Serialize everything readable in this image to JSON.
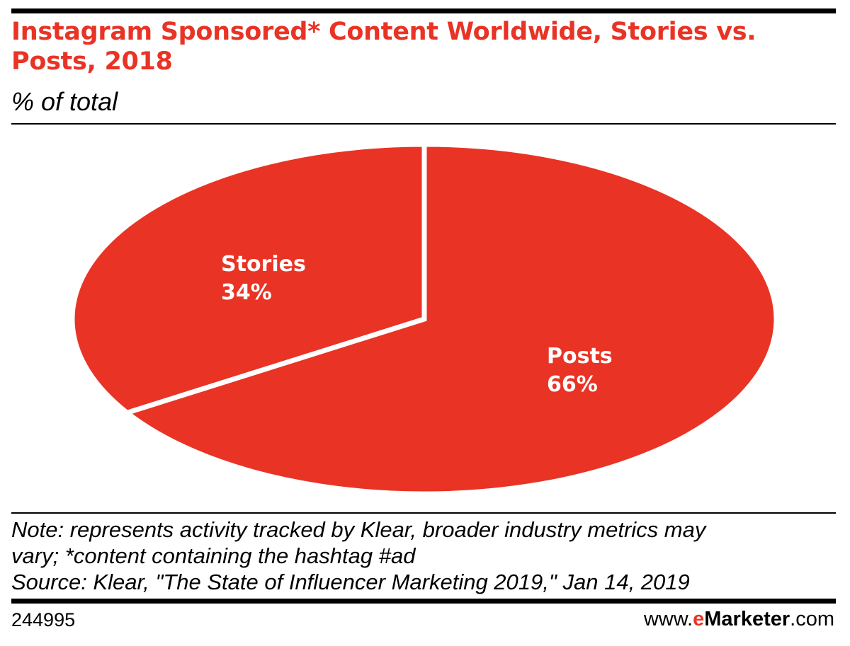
{
  "header": {
    "title": "Instagram Sponsored* Content Worldwide, Stories vs. Posts, 2018",
    "subtitle": "% of total"
  },
  "chart_data": {
    "type": "pie",
    "title": "Instagram Sponsored* Content Worldwide, Stories vs. Posts, 2018",
    "subtitle": "% of total",
    "categories": [
      "Stories",
      "Posts"
    ],
    "values": [
      34,
      66
    ],
    "value_labels": [
      "34%",
      "66%"
    ],
    "slice_color": "#e93325",
    "separator_color": "#ffffff"
  },
  "footer": {
    "note_line1": "Note: represents activity tracked by Klear, broader industry metrics may",
    "note_line2": "vary; *content containing the hashtag #ad",
    "source": "Source: Klear, \"The State of Influencer Marketing 2019,\" Jan 14, 2019",
    "chart_id": "244995",
    "brand_prefix": "www.",
    "brand_e": "e",
    "brand_name": "Marketer",
    "brand_suffix": ".com"
  },
  "colors": {
    "accent": "#e93325",
    "text": "#000000",
    "background": "#ffffff"
  }
}
